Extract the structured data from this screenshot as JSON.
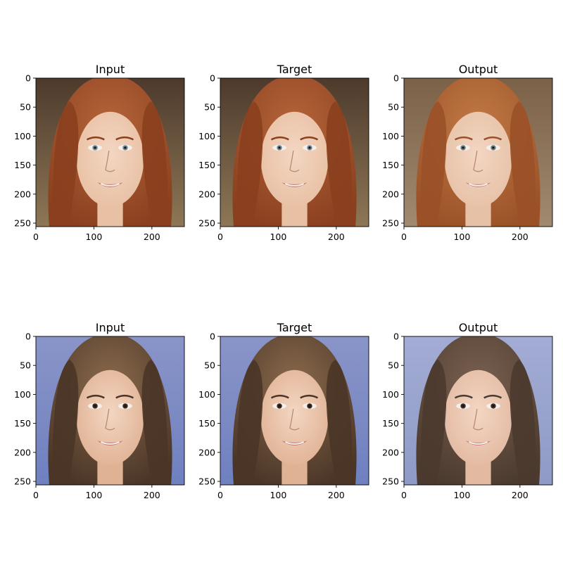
{
  "figure": {
    "rows": [
      {
        "panels": [
          {
            "title": "Input",
            "image": "redhead-woman-face-photo",
            "palette": {
              "bg_top": "#4d3a2c",
              "bg_bottom": "#8d7756",
              "hair": "#8a3f1e",
              "hair_hi": "#b5653a",
              "skin": "#e8c0a3",
              "lip": "#c07a6e",
              "eye": "#6f8a96"
            }
          },
          {
            "title": "Target",
            "image": "redhead-woman-face-photo",
            "palette": {
              "bg_top": "#4d3a2c",
              "bg_bottom": "#8d7756",
              "hair": "#8a3f1e",
              "hair_hi": "#b5653a",
              "skin": "#e8c0a3",
              "lip": "#c07a6e",
              "eye": "#6f8a96"
            }
          },
          {
            "title": "Output",
            "image": "redhead-woman-face-generated",
            "palette": {
              "bg_top": "#7b6148",
              "bg_bottom": "#a08a70",
              "hair": "#9a5128",
              "hair_hi": "#c17a45",
              "skin": "#e6c1a6",
              "lip": "#c58377",
              "eye": "#6f7d86"
            }
          }
        ]
      },
      {
        "panels": [
          {
            "title": "Input",
            "image": "brunette-woman-face-photo",
            "palette": {
              "bg_top": "#8a95c8",
              "bg_bottom": "#6f80c0",
              "hair": "#4a3527",
              "hair_hi": "#8a6a4c",
              "skin": "#e0b294",
              "lip": "#c2716e",
              "eye": "#3a2a22"
            }
          },
          {
            "title": "Target",
            "image": "brunette-woman-face-photo",
            "palette": {
              "bg_top": "#8a95c8",
              "bg_bottom": "#6f80c0",
              "hair": "#4a3527",
              "hair_hi": "#8a6a4c",
              "skin": "#e0b294",
              "lip": "#c2716e",
              "eye": "#3a2a22"
            }
          },
          {
            "title": "Output",
            "image": "brunette-woman-face-generated",
            "palette": {
              "bg_top": "#a2acd4",
              "bg_bottom": "#8f9ac6",
              "hair": "#4b3a2f",
              "hair_hi": "#7a6150",
              "skin": "#e3b9a2",
              "lip": "#c87b79",
              "eye": "#3b2d27"
            }
          }
        ]
      }
    ],
    "x_ticks": [
      0,
      100,
      200
    ],
    "y_ticks": [
      0,
      50,
      100,
      150,
      200,
      250
    ],
    "axis_range": [
      0,
      256
    ]
  }
}
